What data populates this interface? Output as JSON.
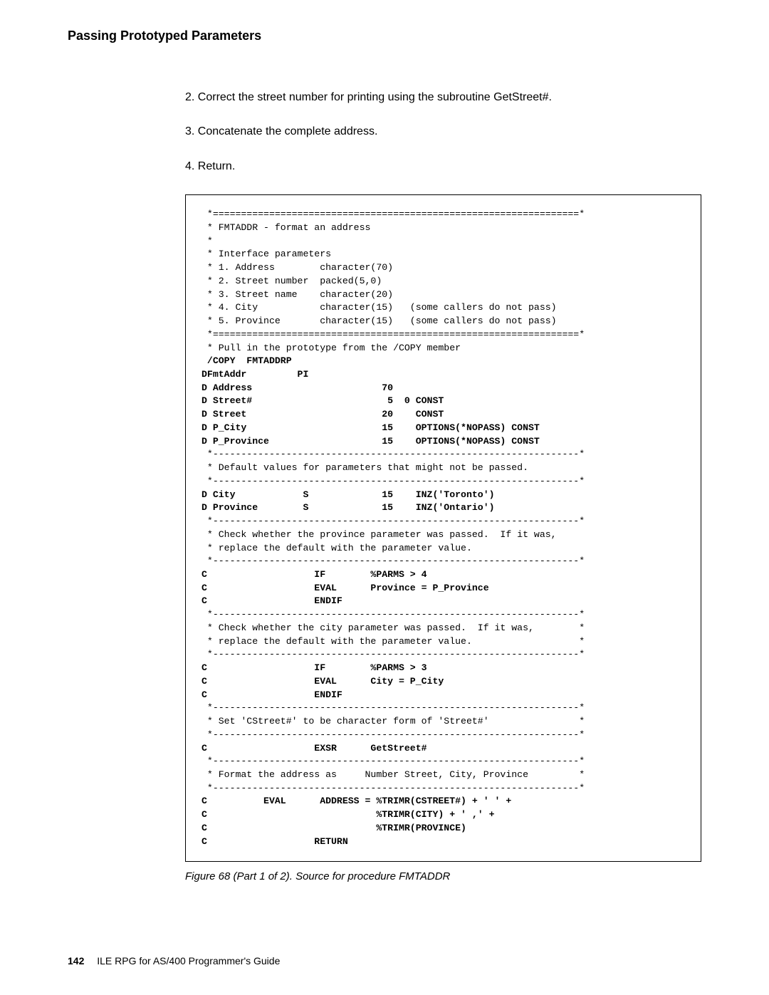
{
  "heading": "Passing Prototyped Parameters",
  "steps": {
    "s2": "2. Correct the street number for printing using the subroutine GetStreet#.",
    "s3": "3. Concatenate the complete address.",
    "s4": "4. Return."
  },
  "code": {
    "l01": " *=================================================================*",
    "l02": " * FMTADDR - format an address",
    "l03": " *",
    "l04": " * Interface parameters",
    "l05": " * 1. Address        character(70)",
    "l06": " * 2. Street number  packed(5,0)",
    "l07": " * 3. Street name    character(20)",
    "l08": " * 4. City           character(15)   (some callers do not pass)",
    "l09": " * 5. Province       character(15)   (some callers do not pass)",
    "l10": " *=================================================================*",
    "l11": " * Pull in the prototype from the /COPY member",
    "l12": " /COPY  FMTADDRP",
    "l13": "DFmtAddr         PI",
    "l14": "D Address                       70",
    "l15": "D Street#                        5  0 CONST",
    "l16": "D Street                        20    CONST",
    "l17": "D P_City                        15    OPTIONS(*NOPASS) CONST",
    "l18": "D P_Province                    15    OPTIONS(*NOPASS) CONST",
    "l19": " *-----------------------------------------------------------------*",
    "l20": " * Default values for parameters that might not be passed.",
    "l21": " *-----------------------------------------------------------------*",
    "l22": "D City            S             15    INZ('Toronto')",
    "l23": "D Province        S             15    INZ('Ontario')",
    "l24": " *-----------------------------------------------------------------*",
    "l25": " * Check whether the province parameter was passed.  If it was,",
    "l26": " * replace the default with the parameter value.",
    "l27": " *-----------------------------------------------------------------*",
    "l28": "C                   IF        %PARMS > 4",
    "l29": "C                   EVAL      Province = P_Province",
    "l30": "C                   ENDIF",
    "l31": " *-----------------------------------------------------------------*",
    "l32": " * Check whether the city parameter was passed.  If it was,        *",
    "l33": " * replace the default with the parameter value.                   *",
    "l34": " *-----------------------------------------------------------------*",
    "l35": "C                   IF        %PARMS > 3",
    "l36": "C                   EVAL      City = P_City",
    "l37": "C                   ENDIF",
    "l38": " *-----------------------------------------------------------------*",
    "l39": " * Set 'CStreet#' to be character form of 'Street#'                *",
    "l40": " *-----------------------------------------------------------------*",
    "l41": "C                   EXSR      GetStreet#",
    "l42": " *-----------------------------------------------------------------*",
    "l43": " * Format the address as     Number Street, City, Province         *",
    "l44": " *-----------------------------------------------------------------*",
    "l45": "C          EVAL      ADDRESS = %TRIMR(CSTREET#) + ' ' +",
    "l46": "C                              %TRIMR(CITY) + ' ,' +",
    "l47": "C                              %TRIMR(PROVINCE)",
    "l48": "C                   RETURN"
  },
  "caption": "Figure 68 (Part 1 of 2).  Source for procedure FMTADDR",
  "footer": {
    "page_num": "142",
    "book": "ILE RPG for AS/400 Programmer's Guide"
  }
}
